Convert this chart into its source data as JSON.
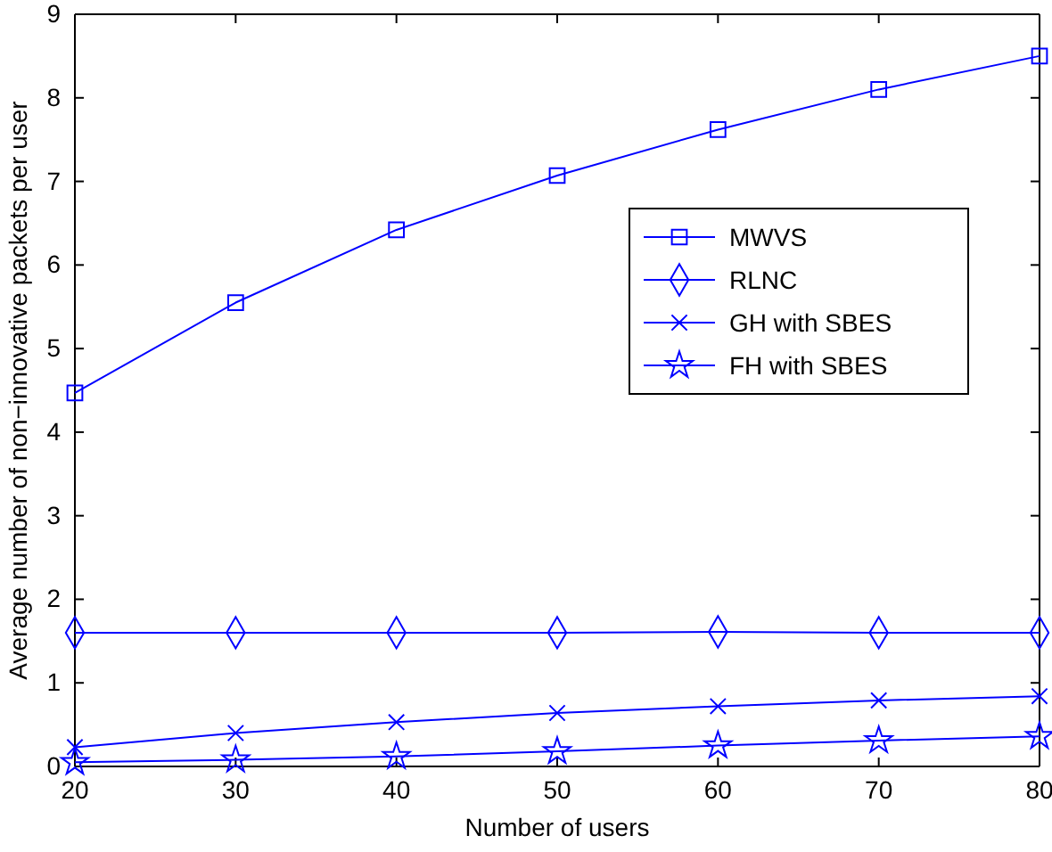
{
  "chart_data": {
    "type": "line",
    "xlabel": "Number of users",
    "ylabel": "Average number of non−innovative packets per user",
    "x": [
      20,
      30,
      40,
      50,
      60,
      70,
      80
    ],
    "xlim": [
      20,
      80
    ],
    "xticks": [
      20,
      30,
      40,
      50,
      60,
      70,
      80
    ],
    "ylim": [
      0,
      9
    ],
    "yticks": [
      0,
      1,
      2,
      3,
      4,
      5,
      6,
      7,
      8,
      9
    ],
    "legend": "right",
    "series": [
      {
        "name": "MWVS",
        "color": "#0000ff",
        "marker": "square",
        "values": [
          4.47,
          5.55,
          6.42,
          7.07,
          7.62,
          8.1,
          8.5
        ]
      },
      {
        "name": "RLNC",
        "color": "#0000ff",
        "marker": "diamond",
        "values": [
          1.6,
          1.6,
          1.6,
          1.6,
          1.61,
          1.6,
          1.6
        ]
      },
      {
        "name": "GH with SBES",
        "color": "#0000ff",
        "marker": "cross",
        "values": [
          0.23,
          0.4,
          0.53,
          0.64,
          0.72,
          0.79,
          0.84
        ]
      },
      {
        "name": "FH with SBES",
        "color": "#0000ff",
        "marker": "star",
        "values": [
          0.05,
          0.08,
          0.12,
          0.18,
          0.25,
          0.31,
          0.36
        ]
      }
    ]
  }
}
